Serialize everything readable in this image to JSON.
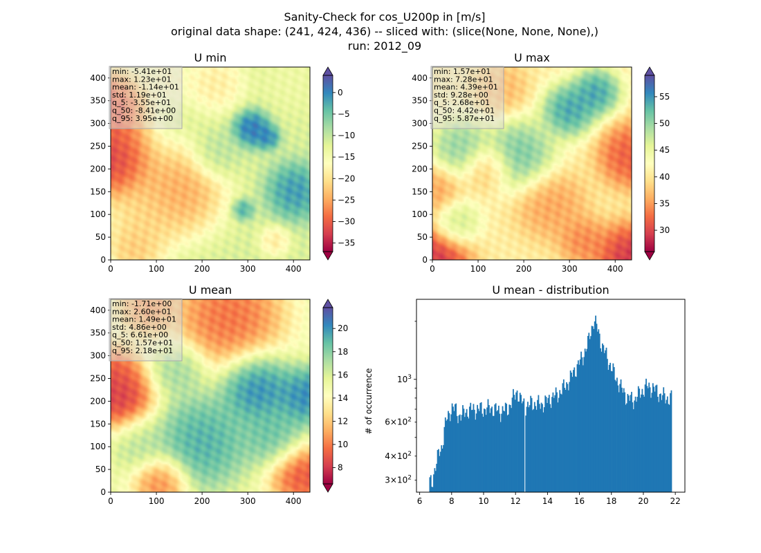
{
  "figure": {
    "title_lines": [
      "Sanity-Check for cos_U200p in [m/s]",
      "original data shape: (241, 424, 436) -- sliced with: (slice(None, None, None),)",
      "run: 2012_09"
    ]
  },
  "colors": {
    "histogram_bar": "#1f77b4",
    "colormap": "Spectral"
  },
  "chart_data": [
    {
      "type": "heatmap",
      "title": "U min",
      "xlim": [
        0,
        436
      ],
      "ylim": [
        0,
        424
      ],
      "x_ticks": [
        0,
        100,
        200,
        300,
        400
      ],
      "y_ticks": [
        0,
        50,
        100,
        150,
        200,
        250,
        300,
        350,
        400
      ],
      "colorbar": {
        "range": [
          -37,
          4
        ],
        "ticks": [
          0,
          -5,
          -10,
          -15,
          -20,
          -25,
          -30,
          -35
        ],
        "tick_labels": [
          "0",
          "−5",
          "−10",
          "−15",
          "−20",
          "−25",
          "−30",
          "−35"
        ],
        "extend": "both"
      },
      "stats": [
        "min: -5.41e+01",
        "max: 1.23e+01",
        "mean: -1.14e+01",
        "std: 1.19e+01",
        "q_5: -3.55e+01",
        "q_50: -8.41e+00",
        "q_95: 3.95e+00"
      ],
      "field": {
        "base": 0.62,
        "blobs": [
          {
            "x": 0,
            "y": 220,
            "r": 70,
            "v": 0.0
          },
          {
            "x": 0,
            "y": 340,
            "r": 60,
            "v": 0.05
          },
          {
            "x": 150,
            "y": 150,
            "r": 75,
            "v": 0.22
          },
          {
            "x": 70,
            "y": 80,
            "r": 60,
            "v": 0.35
          },
          {
            "x": 50,
            "y": 20,
            "r": 45,
            "v": 0.3
          },
          {
            "x": 230,
            "y": 390,
            "r": 50,
            "v": 0.4
          },
          {
            "x": 120,
            "y": 400,
            "r": 45,
            "v": 0.45
          },
          {
            "x": 400,
            "y": 400,
            "r": 60,
            "v": 0.55
          },
          {
            "x": 310,
            "y": 290,
            "r": 32,
            "v": 1.0
          },
          {
            "x": 345,
            "y": 270,
            "r": 20,
            "v": 0.95
          },
          {
            "x": 405,
            "y": 150,
            "r": 48,
            "v": 0.93
          },
          {
            "x": 290,
            "y": 110,
            "r": 18,
            "v": 0.88
          },
          {
            "x": 360,
            "y": 40,
            "r": 25,
            "v": 0.4
          },
          {
            "x": 230,
            "y": 230,
            "r": 40,
            "v": 0.7
          }
        ]
      }
    },
    {
      "type": "heatmap",
      "title": "U max",
      "xlim": [
        0,
        436
      ],
      "ylim": [
        0,
        424
      ],
      "x_ticks": [
        0,
        100,
        200,
        300,
        400
      ],
      "y_ticks": [
        0,
        50,
        100,
        150,
        200,
        250,
        300,
        350,
        400
      ],
      "colorbar": {
        "range": [
          26,
          59
        ],
        "ticks": [
          30,
          35,
          40,
          45,
          50,
          55
        ],
        "tick_labels": [
          "30",
          "35",
          "40",
          "45",
          "50",
          "55"
        ],
        "extend": "both"
      },
      "stats": [
        "min: 1.57e+01",
        "max: 7.28e+01",
        "mean: 4.39e+01",
        "std: 9.28e+00",
        "q_5: 2.68e+01",
        "q_50: 4.42e+01",
        "q_95: 5.87e+01"
      ],
      "field": {
        "base": 0.45,
        "blobs": [
          {
            "x": 0,
            "y": 0,
            "r": 60,
            "v": 0.0
          },
          {
            "x": 436,
            "y": 0,
            "r": 60,
            "v": 0.0
          },
          {
            "x": 436,
            "y": 230,
            "r": 55,
            "v": 0.1
          },
          {
            "x": 0,
            "y": 150,
            "r": 45,
            "v": 0.25
          },
          {
            "x": 120,
            "y": 200,
            "r": 40,
            "v": 0.3
          },
          {
            "x": 260,
            "y": 120,
            "r": 60,
            "v": 0.25
          },
          {
            "x": 300,
            "y": 330,
            "r": 45,
            "v": 0.95
          },
          {
            "x": 360,
            "y": 370,
            "r": 40,
            "v": 0.95
          },
          {
            "x": 190,
            "y": 230,
            "r": 60,
            "v": 0.85
          },
          {
            "x": 60,
            "y": 250,
            "r": 50,
            "v": 0.8
          },
          {
            "x": 50,
            "y": 80,
            "r": 40,
            "v": 0.7
          },
          {
            "x": 150,
            "y": 380,
            "r": 45,
            "v": 0.3
          },
          {
            "x": 330,
            "y": 40,
            "r": 40,
            "v": 0.2
          }
        ]
      }
    },
    {
      "type": "heatmap",
      "title": "U mean",
      "xlim": [
        0,
        436
      ],
      "ylim": [
        0,
        424
      ],
      "x_ticks": [
        0,
        100,
        200,
        300,
        400
      ],
      "y_ticks": [
        0,
        50,
        100,
        150,
        200,
        250,
        300,
        350,
        400
      ],
      "colorbar": {
        "range": [
          6.6,
          21.8
        ],
        "ticks": [
          8,
          10,
          12,
          14,
          16,
          18,
          20
        ],
        "tick_labels": [
          "8",
          "10",
          "12",
          "14",
          "16",
          "18",
          "20"
        ],
        "extend": "both"
      },
      "stats": [
        "min: -1.71e+00",
        "max: 2.60e+01",
        "mean: 1.49e+01",
        "std: 4.86e+00",
        "q_5: 6.61e+00",
        "q_50: 1.57e+01",
        "q_95: 2.18e+01"
      ],
      "field": {
        "base": 0.55,
        "blobs": [
          {
            "x": 20,
            "y": 200,
            "r": 55,
            "v": 0.0
          },
          {
            "x": 0,
            "y": 260,
            "r": 50,
            "v": 0.08
          },
          {
            "x": 260,
            "y": 390,
            "r": 90,
            "v": 0.12
          },
          {
            "x": 80,
            "y": 410,
            "r": 50,
            "v": 0.2
          },
          {
            "x": 420,
            "y": 40,
            "r": 55,
            "v": 0.05
          },
          {
            "x": 110,
            "y": 20,
            "r": 45,
            "v": 0.15
          },
          {
            "x": 320,
            "y": 230,
            "r": 60,
            "v": 0.98
          },
          {
            "x": 430,
            "y": 210,
            "r": 50,
            "v": 0.98
          },
          {
            "x": 200,
            "y": 110,
            "r": 80,
            "v": 0.9
          },
          {
            "x": 360,
            "y": 120,
            "r": 55,
            "v": 0.85
          },
          {
            "x": 150,
            "y": 270,
            "r": 45,
            "v": 0.75
          },
          {
            "x": 60,
            "y": 110,
            "r": 50,
            "v": 0.7
          }
        ]
      }
    },
    {
      "type": "bar",
      "title": "U mean - distribution",
      "xlabel": "",
      "ylabel": "# of occurrence",
      "xlim": [
        5.8,
        22.6
      ],
      "ylim": [
        260,
        2600
      ],
      "yscale": "log",
      "x_ticks": [
        6,
        8,
        10,
        12,
        14,
        16,
        18,
        20,
        22
      ],
      "y_ticks_major": [
        {
          "value": 1000,
          "base": "10",
          "exp": "3"
        }
      ],
      "y_ticks_minor": [
        {
          "value": 300,
          "mant": "3",
          "base": "10",
          "exp": "2"
        },
        {
          "value": 400,
          "mant": "4",
          "base": "10",
          "exp": "2"
        },
        {
          "value": 600,
          "mant": "6",
          "base": "10",
          "exp": "2"
        }
      ],
      "bin_start": 6.6,
      "bin_width": 0.0607,
      "anchors": [
        [
          6.6,
          300
        ],
        [
          6.75,
          280
        ],
        [
          6.85,
          320
        ],
        [
          7.0,
          360
        ],
        [
          7.2,
          410
        ],
        [
          7.4,
          450
        ],
        [
          7.55,
          560
        ],
        [
          7.7,
          620
        ],
        [
          7.85,
          660
        ],
        [
          8.0,
          720
        ],
        [
          8.2,
          700
        ],
        [
          8.4,
          650
        ],
        [
          8.7,
          660
        ],
        [
          9.0,
          690
        ],
        [
          9.5,
          700
        ],
        [
          10.0,
          700
        ],
        [
          10.5,
          710
        ],
        [
          11.0,
          680
        ],
        [
          11.5,
          700
        ],
        [
          11.8,
          780
        ],
        [
          12.1,
          870
        ],
        [
          12.3,
          780
        ],
        [
          12.5,
          750
        ],
        [
          12.8,
          720
        ],
        [
          13.0,
          760
        ],
        [
          13.3,
          740
        ],
        [
          13.8,
          750
        ],
        [
          14.2,
          800
        ],
        [
          14.6,
          830
        ],
        [
          15.0,
          900
        ],
        [
          15.4,
          1000
        ],
        [
          15.8,
          1150
        ],
        [
          16.2,
          1300
        ],
        [
          16.6,
          1600
        ],
        [
          16.9,
          2050
        ],
        [
          17.1,
          1850
        ],
        [
          17.4,
          1500
        ],
        [
          17.8,
          1250
        ],
        [
          18.2,
          1050
        ],
        [
          18.6,
          900
        ],
        [
          19.0,
          800
        ],
        [
          19.4,
          780
        ],
        [
          19.8,
          850
        ],
        [
          20.2,
          920
        ],
        [
          20.6,
          900
        ],
        [
          21.0,
          840
        ],
        [
          21.4,
          800
        ],
        [
          21.8,
          800
        ]
      ],
      "gap_bins": [
        98
      ]
    }
  ]
}
